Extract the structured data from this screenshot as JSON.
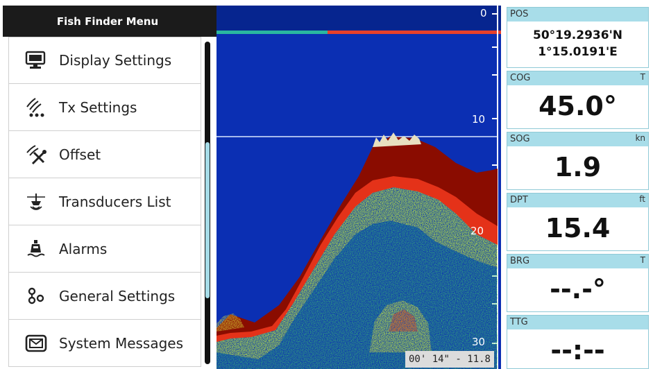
{
  "menu": {
    "title": "Fish Finder Menu",
    "items": [
      {
        "label": "Display Settings",
        "icon": "monitor-icon"
      },
      {
        "label": "Tx Settings",
        "icon": "transmit-waves-icon"
      },
      {
        "label": "Offset",
        "icon": "offset-tools-icon"
      },
      {
        "label": "Transducers List",
        "icon": "transducer-icon"
      },
      {
        "label": "Alarms",
        "icon": "buoy-alarm-icon"
      },
      {
        "label": "General Settings",
        "icon": "settings-nodes-icon"
      },
      {
        "label": "System Messages",
        "icon": "message-envelope-icon"
      }
    ]
  },
  "sonar": {
    "depth_ticks": [
      "0",
      "10",
      "20",
      "30"
    ],
    "time_readout": "00' 14\" - 11.8",
    "colors": {
      "water": "#0b2fb3",
      "strong": "#8a0c00",
      "mid": "#e5301a",
      "weak": "#d6e23a",
      "faint": "#4cd06a"
    }
  },
  "data_panel": {
    "pos": {
      "title": "POS",
      "lat": "50°19.2936'N",
      "lon": "1°15.0191'E"
    },
    "cog": {
      "title": "COG",
      "unit": "T",
      "value": "45.0°"
    },
    "sog": {
      "title": "SOG",
      "unit": "kn",
      "value": "1.9"
    },
    "dpt": {
      "title": "DPT",
      "unit": "ft",
      "value": "15.4"
    },
    "brg": {
      "title": "BRG",
      "unit": "T",
      "value": "--.-°"
    },
    "ttg": {
      "title": "TTG",
      "unit": "",
      "value": "--:--"
    }
  }
}
